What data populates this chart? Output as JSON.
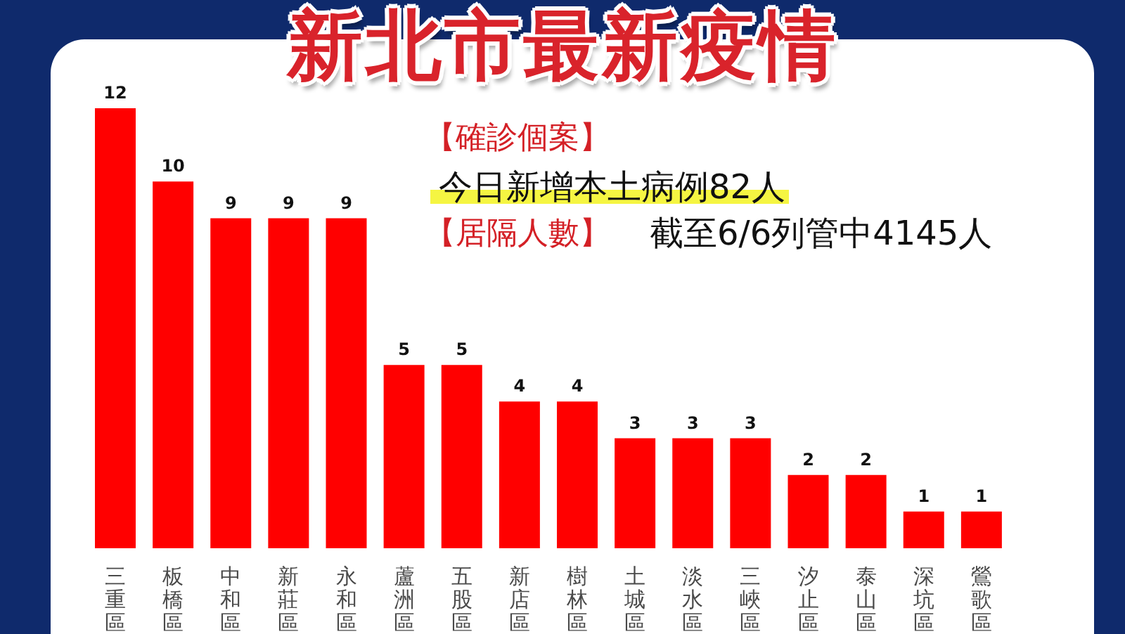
{
  "chart_data": {
    "type": "bar",
    "title": "新北市最新疫情",
    "categories": [
      "三重區",
      "板橋區",
      "中和區",
      "新莊區",
      "永和區",
      "蘆洲區",
      "五股區",
      "新店區",
      "樹林區",
      "土城區",
      "淡水區",
      "三峽區",
      "汐止區",
      "泰山區",
      "深坑區",
      "鶯歌區"
    ],
    "values": [
      12,
      10,
      9,
      9,
      9,
      5,
      5,
      4,
      4,
      3,
      3,
      3,
      2,
      2,
      1,
      1
    ],
    "color": "#ff0000",
    "data_labels": true,
    "tick_labels": "x",
    "annotations": [
      "【確診個案】",
      "今日新增本土病例82人",
      "【居隔人數】",
      "截至6/6列管中4145人"
    ]
  }
}
